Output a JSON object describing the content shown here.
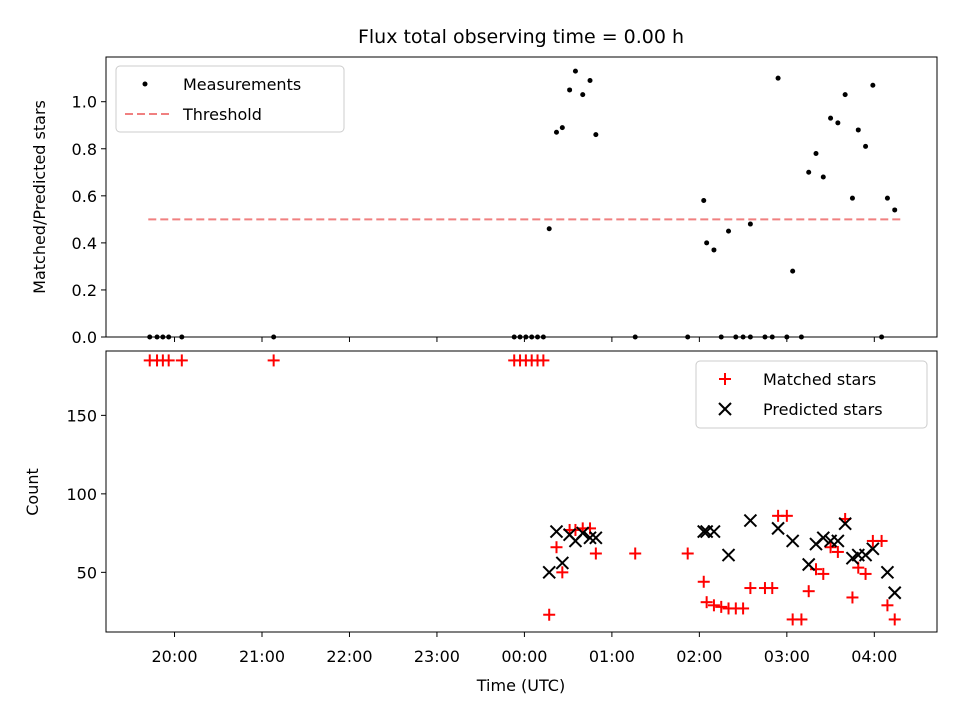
{
  "chart_data": [
    {
      "type": "scatter",
      "title": "Flux total observing time = 0.00 h",
      "xlabel": "",
      "ylabel": "Matched/Predicted stars",
      "xlim": [
        "19:13",
        "04:43"
      ],
      "ylim": [
        0,
        1.19
      ],
      "yticks": [
        0.0,
        0.2,
        0.4,
        0.6,
        0.8,
        1.0
      ],
      "ytick_labels": [
        "0.0",
        "0.2",
        "0.4",
        "0.6",
        "0.8",
        "1.0"
      ],
      "legend_position": "top-left",
      "legend": [
        {
          "label": "Measurements",
          "color": "#000000",
          "marker": "dot"
        },
        {
          "label": "Threshold",
          "color": "#f08080",
          "marker": "dashed-line"
        }
      ],
      "threshold": {
        "value": 0.5,
        "x": [
          "19:42",
          "04:18"
        ],
        "color": "#f08080"
      },
      "series": [
        {
          "name": "Measurements",
          "color": "#000000",
          "points": [
            [
              "19:43",
              0.0
            ],
            [
              "19:48",
              0.0
            ],
            [
              "19:52",
              0.0
            ],
            [
              "19:56",
              0.0
            ],
            [
              "20:05",
              0.0
            ],
            [
              "21:08",
              0.0
            ],
            [
              "23:53",
              0.0
            ],
            [
              "23:57",
              0.0
            ],
            [
              "00:01",
              0.0
            ],
            [
              "00:05",
              0.0
            ],
            [
              "00:09",
              0.0
            ],
            [
              "00:13",
              0.0
            ],
            [
              "00:17",
              0.46
            ],
            [
              "00:22",
              0.87
            ],
            [
              "00:26",
              0.89
            ],
            [
              "00:31",
              1.05
            ],
            [
              "00:35",
              1.13
            ],
            [
              "00:40",
              1.03
            ],
            [
              "00:45",
              1.09
            ],
            [
              "00:49",
              0.86
            ],
            [
              "01:16",
              0.0
            ],
            [
              "01:52",
              0.0
            ],
            [
              "02:03",
              0.58
            ],
            [
              "02:05",
              0.4
            ],
            [
              "02:10",
              0.37
            ],
            [
              "02:15",
              0.0
            ],
            [
              "02:20",
              0.45
            ],
            [
              "02:25",
              0.0
            ],
            [
              "02:30",
              0.0
            ],
            [
              "02:35",
              0.0
            ],
            [
              "02:35",
              0.48
            ],
            [
              "02:45",
              0.0
            ],
            [
              "02:50",
              0.0
            ],
            [
              "02:54",
              1.1
            ],
            [
              "03:00",
              0.0
            ],
            [
              "03:04",
              0.28
            ],
            [
              "03:10",
              0.0
            ],
            [
              "03:15",
              0.7
            ],
            [
              "03:20",
              0.78
            ],
            [
              "03:25",
              0.68
            ],
            [
              "03:30",
              0.93
            ],
            [
              "03:35",
              0.91
            ],
            [
              "03:40",
              1.03
            ],
            [
              "03:45",
              0.59
            ],
            [
              "03:49",
              0.88
            ],
            [
              "03:54",
              0.81
            ],
            [
              "03:59",
              1.07
            ],
            [
              "04:05",
              0.0
            ],
            [
              "04:09",
              0.59
            ],
            [
              "04:14",
              0.54
            ]
          ]
        }
      ]
    },
    {
      "type": "scatter",
      "title": "",
      "xlabel": "Time (UTC)",
      "ylabel": "Count",
      "xlim": [
        "19:13",
        "04:43"
      ],
      "ylim": [
        12,
        191
      ],
      "xticks": [
        "20:00",
        "21:00",
        "22:00",
        "23:00",
        "00:00",
        "01:00",
        "02:00",
        "03:00",
        "04:00"
      ],
      "yticks": [
        50,
        100,
        150
      ],
      "ytick_labels": [
        "50",
        "100",
        "150"
      ],
      "legend_position": "top-right",
      "legend": [
        {
          "label": "Matched stars",
          "color": "#ff0000",
          "marker": "plus"
        },
        {
          "label": "Predicted stars",
          "color": "#000000",
          "marker": "x"
        }
      ],
      "series": [
        {
          "name": "Matched stars",
          "color": "#ff0000",
          "marker": "plus",
          "points": [
            [
              "19:43",
              185
            ],
            [
              "19:48",
              185
            ],
            [
              "19:52",
              185
            ],
            [
              "19:56",
              185
            ],
            [
              "20:05",
              185
            ],
            [
              "21:08",
              185
            ],
            [
              "23:53",
              185
            ],
            [
              "23:57",
              185
            ],
            [
              "00:01",
              185
            ],
            [
              "00:05",
              185
            ],
            [
              "00:09",
              185
            ],
            [
              "00:13",
              185
            ],
            [
              "00:17",
              23
            ],
            [
              "00:22",
              66
            ],
            [
              "00:26",
              50
            ],
            [
              "00:31",
              77
            ],
            [
              "00:35",
              77
            ],
            [
              "00:40",
              78
            ],
            [
              "00:45",
              78
            ],
            [
              "00:49",
              62
            ],
            [
              "01:16",
              62
            ],
            [
              "01:52",
              62
            ],
            [
              "02:03",
              44
            ],
            [
              "02:05",
              31
            ],
            [
              "02:10",
              29
            ],
            [
              "02:15",
              28
            ],
            [
              "02:20",
              27
            ],
            [
              "02:25",
              27
            ],
            [
              "02:30",
              27
            ],
            [
              "02:35",
              40
            ],
            [
              "02:45",
              40
            ],
            [
              "02:50",
              40
            ],
            [
              "02:54",
              86
            ],
            [
              "03:00",
              86
            ],
            [
              "03:04",
              20
            ],
            [
              "03:10",
              20
            ],
            [
              "03:15",
              38
            ],
            [
              "03:20",
              52
            ],
            [
              "03:25",
              49
            ],
            [
              "03:30",
              66
            ],
            [
              "03:35",
              63
            ],
            [
              "03:40",
              84
            ],
            [
              "03:45",
              34
            ],
            [
              "03:49",
              53
            ],
            [
              "03:54",
              49
            ],
            [
              "03:59",
              70
            ],
            [
              "04:05",
              70
            ],
            [
              "04:09",
              29
            ],
            [
              "04:14",
              20
            ]
          ]
        },
        {
          "name": "Predicted stars",
          "color": "#000000",
          "marker": "x",
          "points": [
            [
              "00:17",
              50
            ],
            [
              "00:22",
              76
            ],
            [
              "00:26",
              56
            ],
            [
              "00:31",
              74
            ],
            [
              "00:35",
              70
            ],
            [
              "00:40",
              75
            ],
            [
              "00:45",
              72
            ],
            [
              "00:49",
              72
            ],
            [
              "02:03",
              76
            ],
            [
              "02:05",
              76
            ],
            [
              "02:10",
              76
            ],
            [
              "02:20",
              61
            ],
            [
              "02:35",
              83
            ],
            [
              "02:54",
              78
            ],
            [
              "03:04",
              70
            ],
            [
              "03:15",
              55
            ],
            [
              "03:20",
              68
            ],
            [
              "03:25",
              72
            ],
            [
              "03:30",
              70
            ],
            [
              "03:35",
              70
            ],
            [
              "03:40",
              81
            ],
            [
              "03:45",
              59
            ],
            [
              "03:49",
              61
            ],
            [
              "03:54",
              61
            ],
            [
              "03:59",
              65
            ],
            [
              "04:09",
              50
            ],
            [
              "04:14",
              37
            ]
          ]
        }
      ]
    }
  ]
}
